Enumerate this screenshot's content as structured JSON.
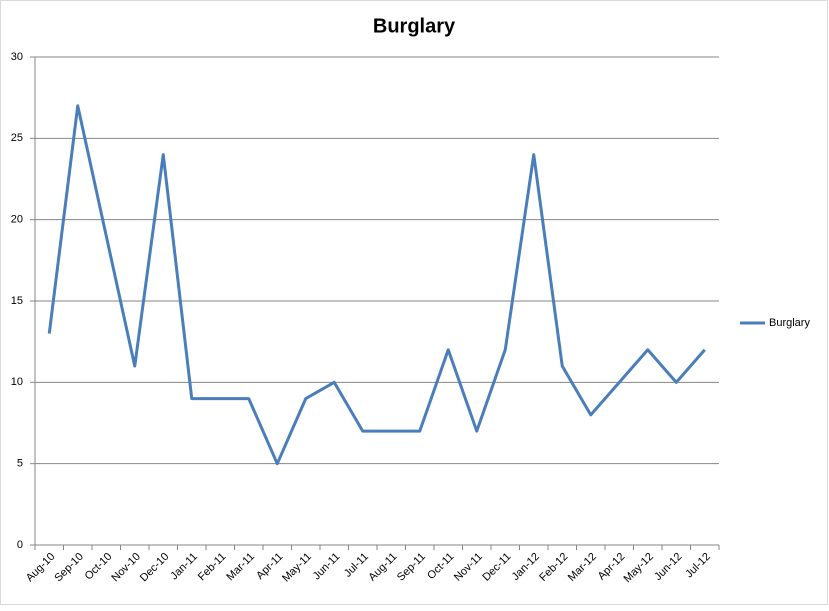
{
  "chart_data": {
    "type": "line",
    "title": "Burglary",
    "categories": [
      "Aug-10",
      "Sep-10",
      "Oct-10",
      "Nov-10",
      "Dec-10",
      "Jan-11",
      "Feb-11",
      "Mar-11",
      "Apr-11",
      "May-11",
      "Jun-11",
      "Jul-11",
      "Aug-11",
      "Sep-11",
      "Oct-11",
      "Nov-11",
      "Dec-11",
      "Jan-12",
      "Feb-12",
      "Mar-12",
      "Apr-12",
      "May-12",
      "Jun-12",
      "Jul-12"
    ],
    "series": [
      {
        "name": "Burglary",
        "color": "#4a7ebb",
        "values": [
          13,
          27,
          19,
          11,
          24,
          9,
          9,
          9,
          5,
          9,
          10,
          7,
          7,
          7,
          12,
          7,
          12,
          24,
          11,
          8,
          10,
          12,
          10,
          12
        ]
      }
    ],
    "ylim": [
      0,
      30
    ],
    "yticks": [
      0,
      5,
      10,
      15,
      20,
      25,
      30
    ],
    "grid": true,
    "legend": "right"
  }
}
